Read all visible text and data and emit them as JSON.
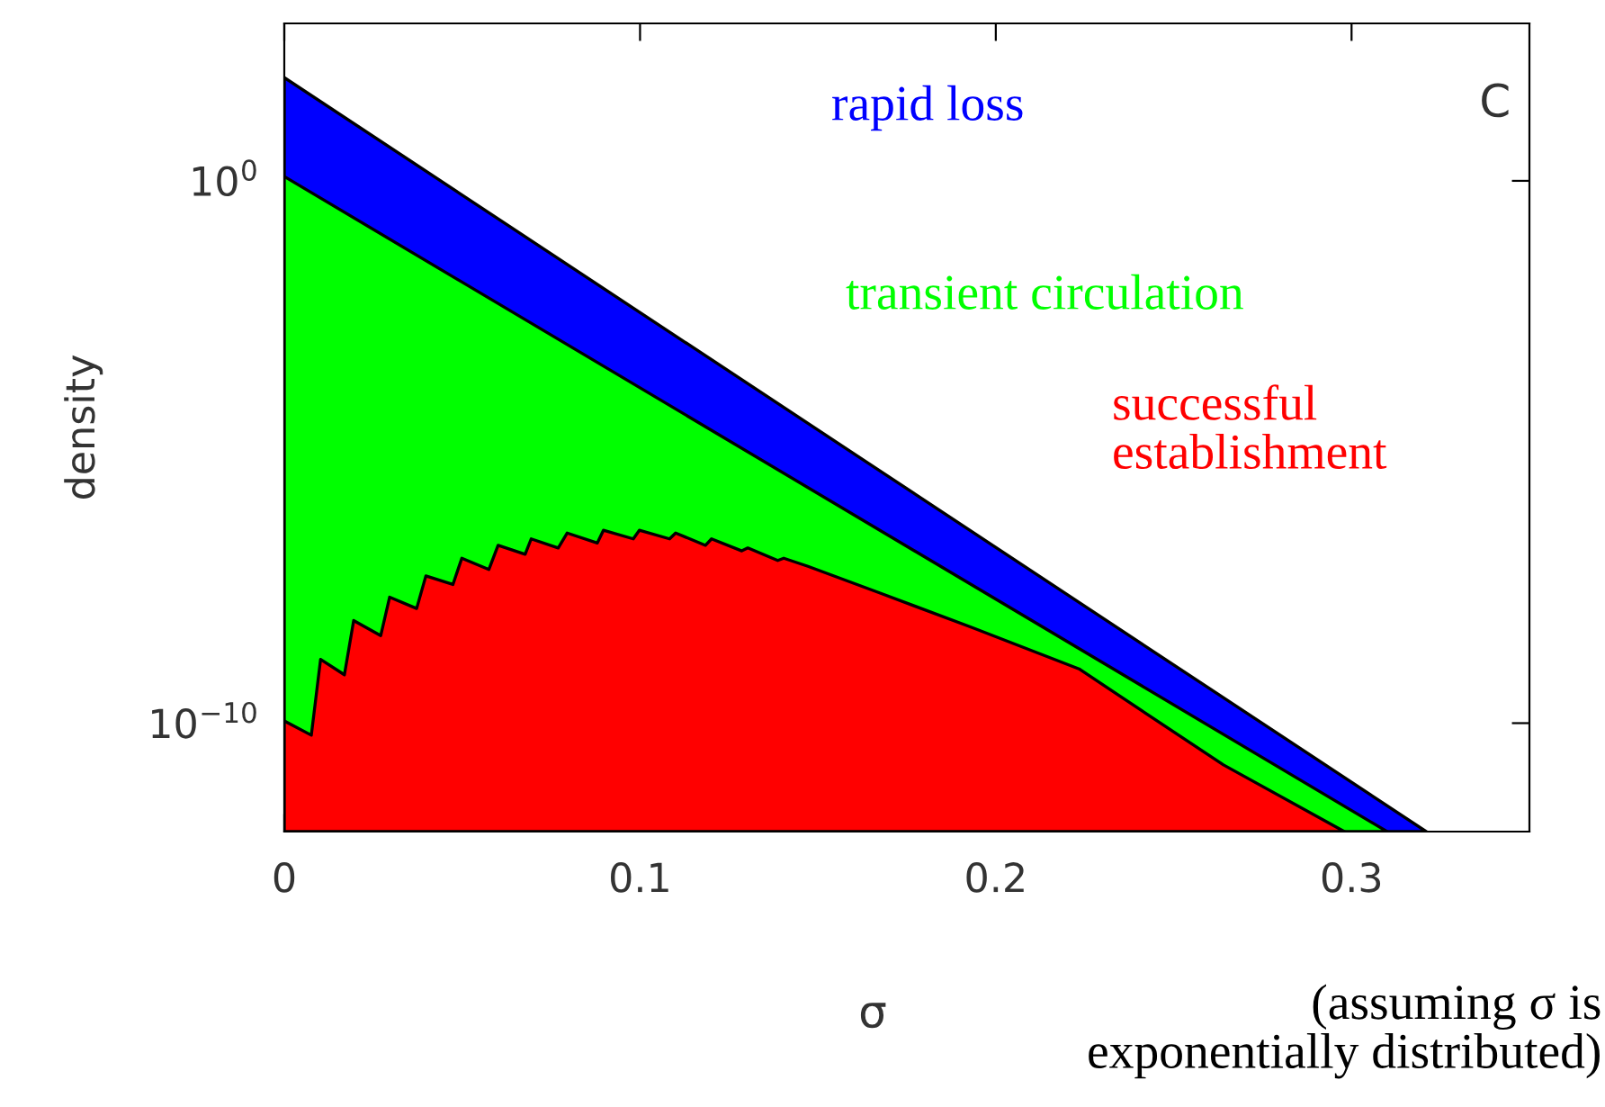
{
  "chart_data": {
    "type": "area",
    "xlabel": "σ",
    "ylabel": "density",
    "log": "y",
    "xlim": [
      0,
      0.35
    ],
    "xticks": [
      0,
      0.1,
      0.2,
      0.3
    ],
    "ylim": [
      1e-12,
      800
    ],
    "yticks": [
      {
        "value": 1e-10,
        "label": "10$^{−10}$"
      },
      {
        "value": 1,
        "label": "10$^{0}$"
      }
    ],
    "annotations": [
      "C",
      "(assuming σ is\nexponentially distributed)"
    ],
    "series": [
      {
        "name": "rapid loss",
        "color": "#0000ff",
        "x": [
          0,
          0.321
        ],
        "values": [
          80,
          1e-12
        ]
      },
      {
        "name": "transient circulation",
        "color": "#00ff00",
        "x": [
          0,
          0.31
        ],
        "values": [
          1.2,
          1e-12
        ]
      },
      {
        "name": "successful\nestablishment",
        "color": "#ff0000",
        "x": [
          0,
          0.0076,
          0.0102,
          0.0169,
          0.0195,
          0.0271,
          0.0296,
          0.0372,
          0.0398,
          0.0474,
          0.0499,
          0.0575,
          0.0601,
          0.0677,
          0.0694,
          0.077,
          0.0795,
          0.088,
          0.0897,
          0.0981,
          0.0998,
          0.1083,
          0.11,
          0.1184,
          0.1201,
          0.1286,
          0.1303,
          0.1387,
          0.1404,
          0.1472,
          0.1675,
          0.193,
          0.2234,
          0.264,
          0.298
        ],
        "values": [
          1.1e-10,
          6e-11,
          1.5e-09,
          7.8e-10,
          7.8e-09,
          4.1e-09,
          2.1e-08,
          1.3e-08,
          5.2e-08,
          3.6e-08,
          1.1e-07,
          6.8e-08,
          1.9e-07,
          1.3e-07,
          2.5e-07,
          1.7e-07,
          3.2e-07,
          2.1e-07,
          3.6e-07,
          2.5e-07,
          3.6e-07,
          2.5e-07,
          3.2e-07,
          1.9e-07,
          2.5e-07,
          1.5e-07,
          1.7e-07,
          1e-07,
          1.1e-07,
          7.8e-08,
          2.5e-08,
          5.9e-09,
          1e-09,
          1.7e-11,
          1e-12
        ]
      }
    ]
  }
}
